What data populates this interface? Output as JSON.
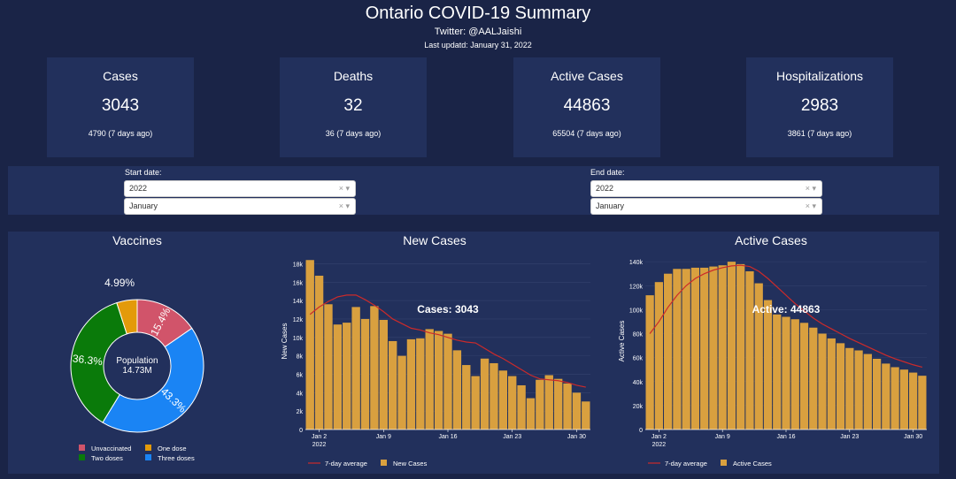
{
  "header": {
    "title": "Ontario COVID-19 Summary",
    "twitter": "Twitter: @AALJaishi",
    "updated": "Last updatd: January 31, 2022"
  },
  "cards": [
    {
      "title": "Cases",
      "value": "3043",
      "prev": "4790 (7 days ago)"
    },
    {
      "title": "Deaths",
      "value": "32",
      "prev": "36 (7 days ago)"
    },
    {
      "title": "Active Cases",
      "value": "44863",
      "prev": "65504 (7 days ago)"
    },
    {
      "title": "Hospitalizations",
      "value": "2983",
      "prev": "3861 (7 days ago)"
    }
  ],
  "filters": {
    "start": {
      "label": "Start date:",
      "year": "2022",
      "month": "January"
    },
    "end": {
      "label": "End date:",
      "year": "2022",
      "month": "January"
    },
    "clear_glyph": "×",
    "arrow_glyph": "▾"
  },
  "chart_data": [
    {
      "type": "pie",
      "title": "Vaccines",
      "center_label": "Population",
      "center_value": "14.73M",
      "labels": [
        "Unvaccinated",
        "One dose",
        "Two doses",
        "Three doses"
      ],
      "values": [
        15.4,
        4.99,
        36.3,
        43.3
      ],
      "display": [
        "15.4%",
        "4.99%",
        "36.3%",
        "43.3%"
      ],
      "colors": [
        "#d1546a",
        "#e39a0a",
        "#0a7a0a",
        "#1a84f4"
      ],
      "legend_position": "bottom"
    },
    {
      "type": "bar",
      "title": "New Cases",
      "ylabel": "New Cases",
      "annotation": "Cases: 3043",
      "x_day_start": 1,
      "x_ticks": [
        {
          "day": 2,
          "label": "Jan 2",
          "sub": "2022"
        },
        {
          "day": 9,
          "label": "Jan 9"
        },
        {
          "day": 16,
          "label": "Jan 16"
        },
        {
          "day": 23,
          "label": "Jan 23"
        },
        {
          "day": 30,
          "label": "Jan 30"
        }
      ],
      "ylim": [
        0,
        19000
      ],
      "y_ticks": [
        0,
        2000,
        4000,
        6000,
        8000,
        10000,
        12000,
        14000,
        16000,
        18000
      ],
      "y_tick_labels": [
        "0",
        "2k",
        "4k",
        "6k",
        "8k",
        "10k",
        "12k",
        "14k",
        "16k",
        "18k"
      ],
      "series": [
        {
          "name": "New Cases",
          "kind": "bar",
          "color": "#d9a03f",
          "values": [
            18400,
            16700,
            13600,
            11400,
            11600,
            13300,
            12000,
            13400,
            11900,
            9600,
            8000,
            9800,
            9900,
            10900,
            10700,
            10400,
            8600,
            7000,
            5800,
            7700,
            7200,
            6400,
            5800,
            4800,
            3400,
            5400,
            5900,
            5500,
            5000,
            4000,
            3043
          ]
        },
        {
          "name": "7-day average",
          "kind": "line",
          "color": "#cc2a2a",
          "values": [
            12500,
            13300,
            13900,
            14400,
            14600,
            14600,
            14100,
            13500,
            12800,
            12000,
            11500,
            11000,
            10800,
            10500,
            10300,
            10000,
            9700,
            9500,
            9400,
            8800,
            8200,
            7700,
            7100,
            6500,
            5900,
            5500,
            5400,
            5300,
            5100,
            4800,
            4600
          ]
        }
      ],
      "legend_position": "bottom"
    },
    {
      "type": "bar",
      "title": "Active Cases",
      "ylabel": "Active Cases",
      "annotation": "Active: 44863",
      "x_day_start": 1,
      "x_ticks": [
        {
          "day": 2,
          "label": "Jan 2",
          "sub": "2022"
        },
        {
          "day": 9,
          "label": "Jan 9"
        },
        {
          "day": 16,
          "label": "Jan 16"
        },
        {
          "day": 23,
          "label": "Jan 23"
        },
        {
          "day": 30,
          "label": "Jan 30"
        }
      ],
      "ylim": [
        0,
        146000
      ],
      "y_ticks": [
        0,
        20000,
        40000,
        60000,
        80000,
        100000,
        120000,
        140000
      ],
      "y_tick_labels": [
        "0",
        "20k",
        "40k",
        "60k",
        "80k",
        "100k",
        "120k",
        "140k"
      ],
      "series": [
        {
          "name": "Active Cases",
          "kind": "bar",
          "color": "#d9a03f",
          "values": [
            112000,
            123000,
            130000,
            134000,
            134000,
            135000,
            135000,
            136000,
            137000,
            140000,
            138000,
            132000,
            122000,
            108000,
            96000,
            94000,
            92000,
            89000,
            85000,
            80000,
            76000,
            72000,
            68000,
            66000,
            63000,
            59000,
            55000,
            52000,
            50000,
            47500,
            44863
          ]
        },
        {
          "name": "7-day average",
          "kind": "line",
          "color": "#cc2a2a",
          "values": [
            80000,
            90000,
            102000,
            112000,
            120000,
            126000,
            130000,
            133000,
            135000,
            136500,
            137000,
            136000,
            132000,
            126000,
            119000,
            112000,
            105000,
            99000,
            93000,
            88000,
            84000,
            80000,
            76000,
            72500,
            69000,
            65500,
            62000,
            59000,
            56500,
            54000,
            52000
          ]
        }
      ],
      "legend_position": "bottom"
    }
  ]
}
